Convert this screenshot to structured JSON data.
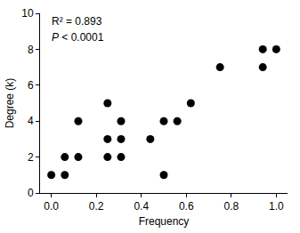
{
  "chart_data": {
    "type": "scatter",
    "x_label": "Frequency",
    "y_label": "Degree (k)",
    "annotations": [
      "R² = 0.893",
      "P < 0.0001"
    ],
    "x": [
      0.0,
      0.06,
      0.06,
      0.12,
      0.12,
      0.25,
      0.25,
      0.25,
      0.31,
      0.31,
      0.31,
      0.44,
      0.5,
      0.5,
      0.56,
      0.62,
      0.75,
      0.94,
      0.94,
      1.0
    ],
    "values": [
      1,
      1,
      2,
      2,
      4,
      5,
      3,
      2,
      4,
      3,
      2,
      3,
      4,
      1,
      4,
      5,
      7,
      8,
      7,
      8
    ],
    "color": "#000000",
    "marker": "circle",
    "xlim": [
      -0.05,
      1.05
    ],
    "xticks": [
      {
        "value": 0,
        "label": "0.0"
      },
      0.2,
      0.4,
      0.6,
      0.8,
      {
        "value": 1,
        "label": "1.0"
      }
    ],
    "ylim": [
      0,
      10
    ],
    "yticks": [
      0,
      2,
      4,
      6,
      8,
      10
    ],
    "grid": false
  }
}
